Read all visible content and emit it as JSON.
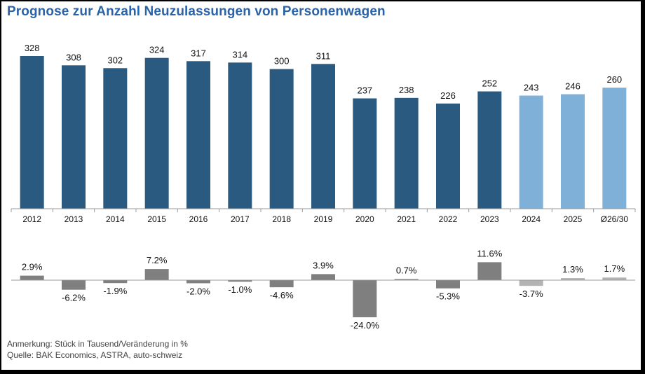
{
  "title": "Prognose zur Anzahl Neuzulassungen von Personenwagen",
  "colors": {
    "actual": "#2a5a80",
    "forecast": "#7fb0d8",
    "change_actual": "#7f7f7f",
    "change_forecast": "#b3b3b3",
    "title": "#2a63a8"
  },
  "chart_data": [
    {
      "type": "bar",
      "title": "",
      "categories": [
        "2012",
        "2013",
        "2014",
        "2015",
        "2016",
        "2017",
        "2018",
        "2019",
        "2020",
        "2021",
        "2022",
        "2023",
        "2024",
        "2025",
        "Ø26/30"
      ],
      "values": [
        328,
        308,
        302,
        324,
        317,
        314,
        300,
        311,
        237,
        238,
        226,
        252,
        243,
        246,
        260
      ],
      "labels": [
        "328",
        "308",
        "302",
        "324",
        "317",
        "314",
        "300",
        "311",
        "237",
        "238",
        "226",
        "252",
        "243",
        "246",
        "260"
      ],
      "forecast_from_index": 12,
      "ylim": [
        0,
        340
      ],
      "grid": false
    },
    {
      "type": "bar",
      "title": "",
      "categories": [
        "2012",
        "2013",
        "2014",
        "2015",
        "2016",
        "2017",
        "2018",
        "2019",
        "2020",
        "2021",
        "2022",
        "2023",
        "2024",
        "2025",
        "Ø26/30"
      ],
      "values": [
        2.9,
        -6.2,
        -1.9,
        7.2,
        -2.0,
        -1.0,
        -4.6,
        3.9,
        -24.0,
        0.7,
        -5.3,
        11.6,
        -3.7,
        1.3,
        1.7
      ],
      "labels": [
        "2.9%",
        "-6.2%",
        "-1.9%",
        "7.2%",
        "-2.0%",
        "-1.0%",
        "-4.6%",
        "3.9%",
        "-24.0%",
        "0.7%",
        "-5.3%",
        "11.6%",
        "-3.7%",
        "1.3%",
        "1.7%"
      ],
      "forecast_from_index": 12,
      "ylim": [
        -24,
        12
      ],
      "grid": false
    }
  ],
  "notes": {
    "line1": "Anmerkung: Stück in Tausend/Veränderung in %",
    "line2": "Quelle: BAK Economics, ASTRA, auto-schweiz"
  }
}
